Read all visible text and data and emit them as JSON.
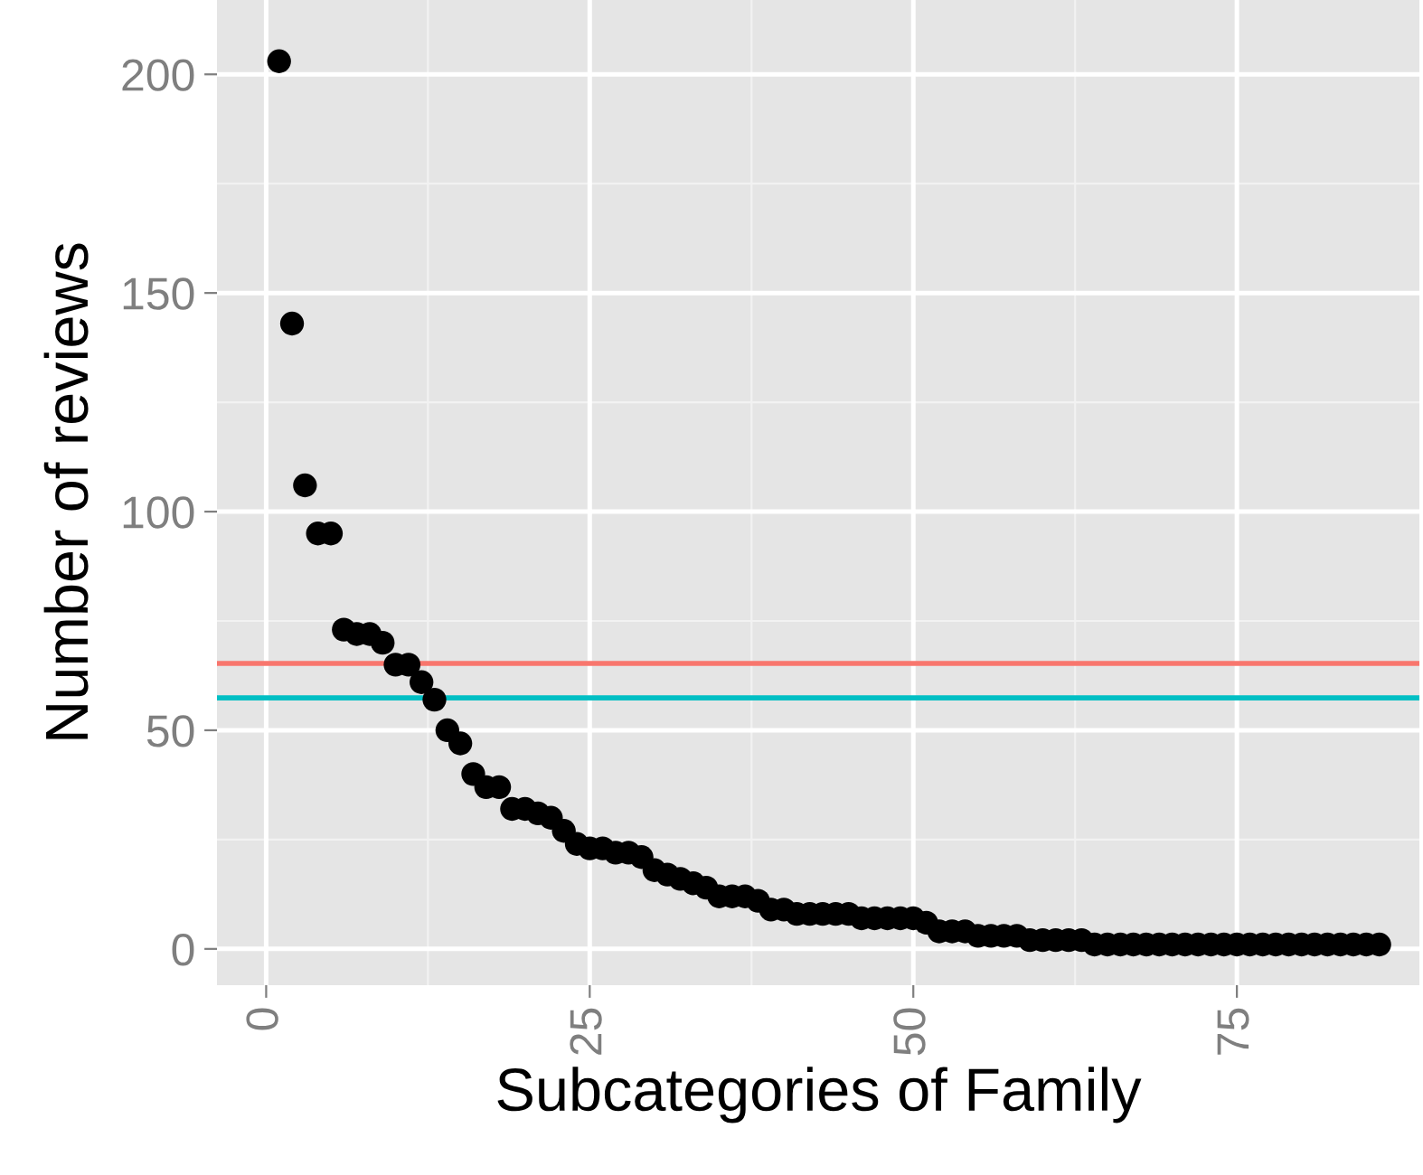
{
  "chart_data": {
    "type": "scatter",
    "xlabel": "Subcategories of Family",
    "ylabel": "Number of reviews",
    "x": [
      1,
      2,
      3,
      4,
      5,
      6,
      7,
      8,
      9,
      10,
      11,
      12,
      13,
      14,
      15,
      16,
      17,
      18,
      19,
      20,
      21,
      22,
      23,
      24,
      25,
      26,
      27,
      28,
      29,
      30,
      31,
      32,
      33,
      34,
      35,
      36,
      37,
      38,
      39,
      40,
      41,
      42,
      43,
      44,
      45,
      46,
      47,
      48,
      49,
      50,
      51,
      52,
      53,
      54,
      55,
      56,
      57,
      58,
      59,
      60,
      61,
      62,
      63,
      64,
      65,
      66,
      67,
      68,
      69,
      70,
      71,
      72,
      73,
      74,
      75,
      76,
      77,
      78,
      79,
      80,
      81,
      82,
      83,
      84,
      85,
      86
    ],
    "values": [
      203,
      143,
      106,
      95,
      95,
      73,
      72,
      72,
      70,
      65,
      65,
      61,
      57,
      50,
      47,
      40,
      37,
      37,
      32,
      32,
      31,
      30,
      27,
      24,
      23,
      23,
      22,
      22,
      21,
      18,
      17,
      16,
      15,
      14,
      12,
      12,
      12,
      11,
      9,
      9,
      8,
      8,
      8,
      8,
      8,
      7,
      7,
      7,
      7,
      7,
      6,
      4,
      4,
      4,
      3,
      3,
      3,
      3,
      2,
      2,
      2,
      2,
      2,
      1,
      1,
      1,
      1,
      1,
      1,
      1,
      1,
      1,
      1,
      1,
      1,
      1,
      1,
      1,
      1,
      1,
      1,
      1,
      1,
      1,
      1,
      1
    ],
    "color": "#000000",
    "marker": "circle",
    "xlim": [
      -3.8,
      89.1
    ],
    "ylim": [
      -8.3,
      217
    ],
    "xticks": [
      0,
      25,
      50,
      75
    ],
    "yticks": [
      0,
      50,
      100,
      150,
      200
    ],
    "ref_lines": [
      {
        "axis": "y",
        "value": 65.3,
        "color": "#f8766d"
      },
      {
        "axis": "y",
        "value": 57.4,
        "color": "#00bfc4"
      }
    ],
    "grid": true
  }
}
